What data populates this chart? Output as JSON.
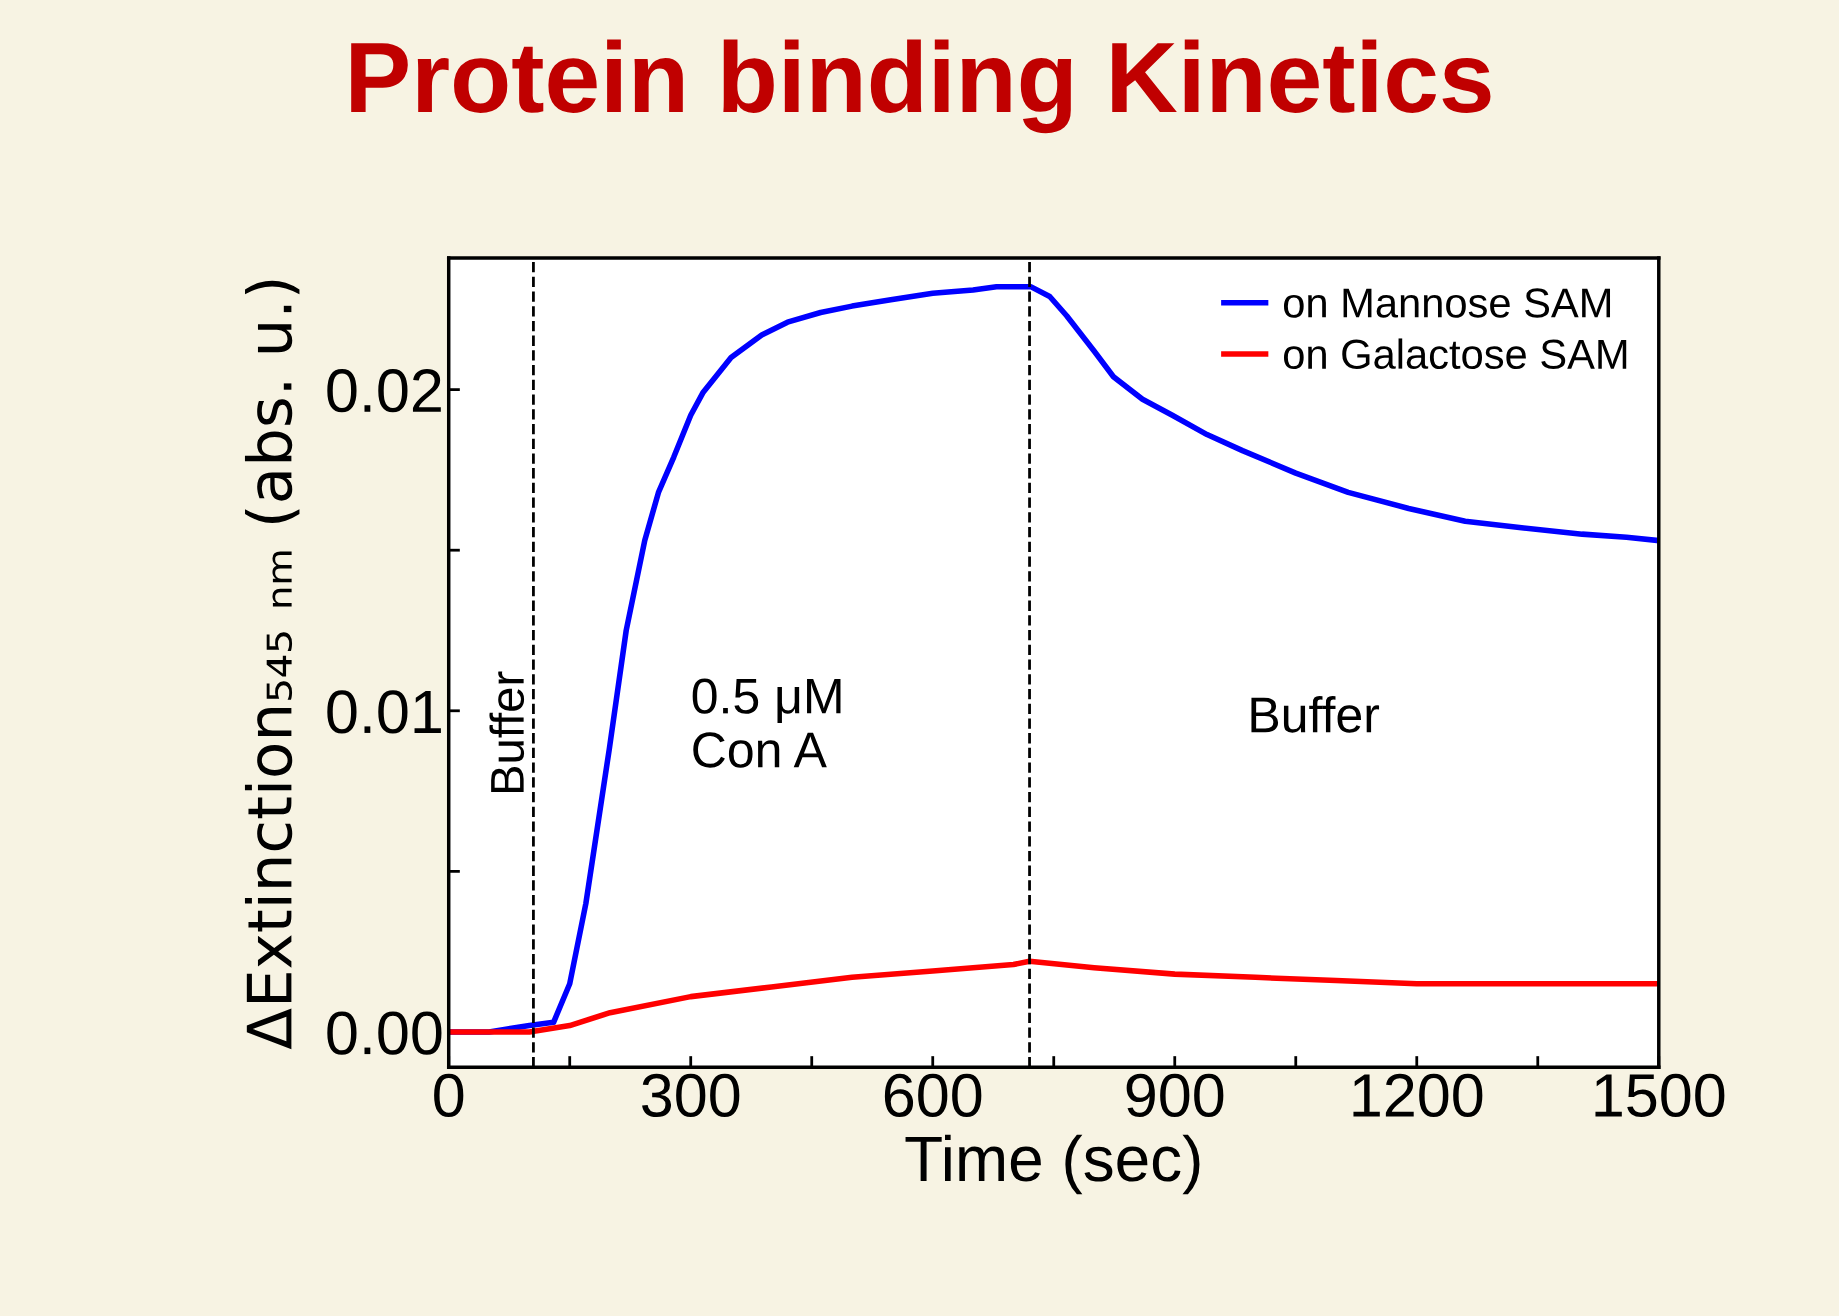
{
  "chart_data": {
    "type": "line",
    "title": "Protein binding Kinetics",
    "xlabel": "Time (sec)",
    "ylabel": "ΔExtinction₅₄₅ ₙₘ (abs. u.)",
    "xlim": [
      0,
      1500
    ],
    "xticks": [
      0,
      {
        "value": 150,
        "label": null
      },
      300,
      {
        "value": 450,
        "label": null
      },
      600,
      {
        "value": 750,
        "label": null
      },
      900,
      {
        "value": 1050,
        "label": null
      },
      1200,
      {
        "value": 1350,
        "label": null
      },
      1500
    ],
    "ylim": [
      -0.0011,
      0.0241
    ],
    "yticks": [
      {
        "value": 0.0,
        "label": "0.00"
      },
      {
        "value": 0.005,
        "label": null
      },
      {
        "value": 0.01,
        "label": "0.01"
      },
      {
        "value": 0.015,
        "label": null
      },
      {
        "value": 0.02,
        "label": "0.02"
      }
    ],
    "grid": false,
    "legend": "top right",
    "line_style": "solid",
    "marker": "none",
    "series": [
      {
        "name": "on Mannose SAM",
        "color": "#0000ff",
        "x": [
          0,
          50,
          100,
          130,
          150,
          170,
          199,
          220,
          243,
          260,
          279,
          300,
          315,
          350,
          388,
          420,
          461,
          500,
          548,
          600,
          650,
          679,
          722,
          745,
          766,
          800,
          824,
          860,
          897,
          940,
          984,
          1050,
          1115,
          1190,
          1260,
          1330,
          1405,
          1460,
          1500
        ],
        "values": [
          0.0,
          0.0,
          0.0002,
          0.0003,
          0.0015,
          0.004,
          0.0088,
          0.0125,
          0.0153,
          0.0168,
          0.0179,
          0.0192,
          0.0199,
          0.021,
          0.0217,
          0.0221,
          0.0224,
          0.0226,
          0.0228,
          0.023,
          0.0231,
          0.0232,
          0.0232,
          0.0229,
          0.0223,
          0.0212,
          0.0204,
          0.0197,
          0.0192,
          0.0186,
          0.0181,
          0.0174,
          0.0168,
          0.0163,
          0.0159,
          0.0157,
          0.0155,
          0.0154,
          0.0153
        ]
      },
      {
        "name": "on Galactose SAM",
        "color": "#ff0000",
        "x": [
          0,
          50,
          100,
          150,
          200,
          300,
          400,
          500,
          600,
          700,
          720,
          800,
          900,
          1000,
          1100,
          1200,
          1300,
          1400,
          1500
        ],
        "values": [
          0.0,
          0.0,
          0.0,
          0.0002,
          0.0006,
          0.0011,
          0.0014,
          0.0017,
          0.0019,
          0.0021,
          0.0022,
          0.002,
          0.0018,
          0.0017,
          0.0016,
          0.0015,
          0.0015,
          0.0015,
          0.0015
        ]
      }
    ],
    "ref_lines": [
      {
        "axis": "x",
        "value": 105,
        "label": "Buffer",
        "color": "#000000",
        "line_style": "dashed"
      },
      {
        "axis": "x",
        "value": 720,
        "label": null,
        "color": "#000000",
        "line_style": "dashed"
      }
    ],
    "annotations": [
      "0.5 μM\nCon A",
      "Buffer"
    ]
  }
}
